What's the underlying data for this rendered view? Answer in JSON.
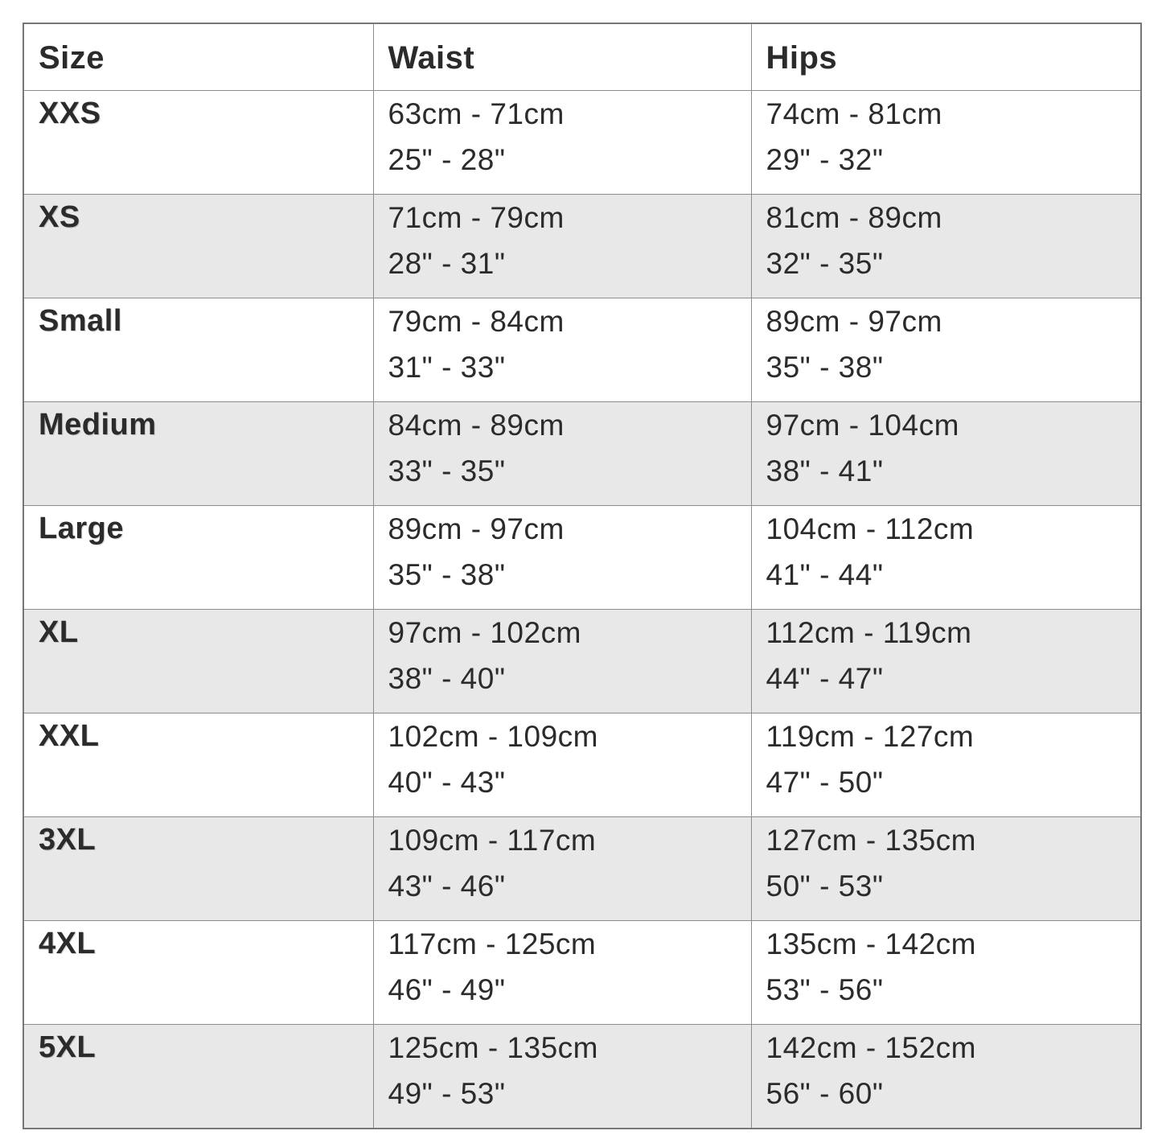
{
  "table": {
    "columns": [
      "Size",
      "Waist",
      "Hips"
    ],
    "rows": [
      {
        "size": "XXS",
        "waist_cm": "63cm - 71cm",
        "waist_in": "25\" - 28\"",
        "hips_cm": "74cm - 81cm",
        "hips_in": "29\" - 32\""
      },
      {
        "size": "XS",
        "waist_cm": "71cm - 79cm",
        "waist_in": "28\" - 31\"",
        "hips_cm": "81cm - 89cm",
        "hips_in": "32\" - 35\""
      },
      {
        "size": "Small",
        "waist_cm": "79cm - 84cm",
        "waist_in": "31\" - 33\"",
        "hips_cm": "89cm - 97cm",
        "hips_in": "35\" - 38\""
      },
      {
        "size": "Medium",
        "waist_cm": "84cm - 89cm",
        "waist_in": "33\" - 35\"",
        "hips_cm": "97cm - 104cm",
        "hips_in": "38\" - 41\""
      },
      {
        "size": "Large",
        "waist_cm": "89cm - 97cm",
        "waist_in": "35\" - 38\"",
        "hips_cm": "104cm - 112cm",
        "hips_in": "41\" - 44\""
      },
      {
        "size": "XL",
        "waist_cm": "97cm - 102cm",
        "waist_in": "38\" - 40\"",
        "hips_cm": "112cm - 119cm",
        "hips_in": "44\" - 47\""
      },
      {
        "size": "XXL",
        "waist_cm": "102cm - 109cm",
        "waist_in": "40\" - 43\"",
        "hips_cm": "119cm - 127cm",
        "hips_in": "47\" - 50\""
      },
      {
        "size": "3XL",
        "waist_cm": "109cm - 117cm",
        "waist_in": "43\" - 46\"",
        "hips_cm": "127cm - 135cm",
        "hips_in": "50\" - 53\""
      },
      {
        "size": "4XL",
        "waist_cm": "117cm - 125cm",
        "waist_in": "46\" - 49\"",
        "hips_cm": "135cm - 142cm",
        "hips_in": "53\" - 56\""
      },
      {
        "size": "5XL",
        "waist_cm": "125cm - 135cm",
        "waist_in": "49\" - 53\"",
        "hips_cm": "142cm - 152cm",
        "hips_in": "56\" - 60\""
      }
    ],
    "colors": {
      "shaded_row": "#e8e8e8",
      "border": "#8c8c8c",
      "text": "#2b2b2b"
    }
  }
}
